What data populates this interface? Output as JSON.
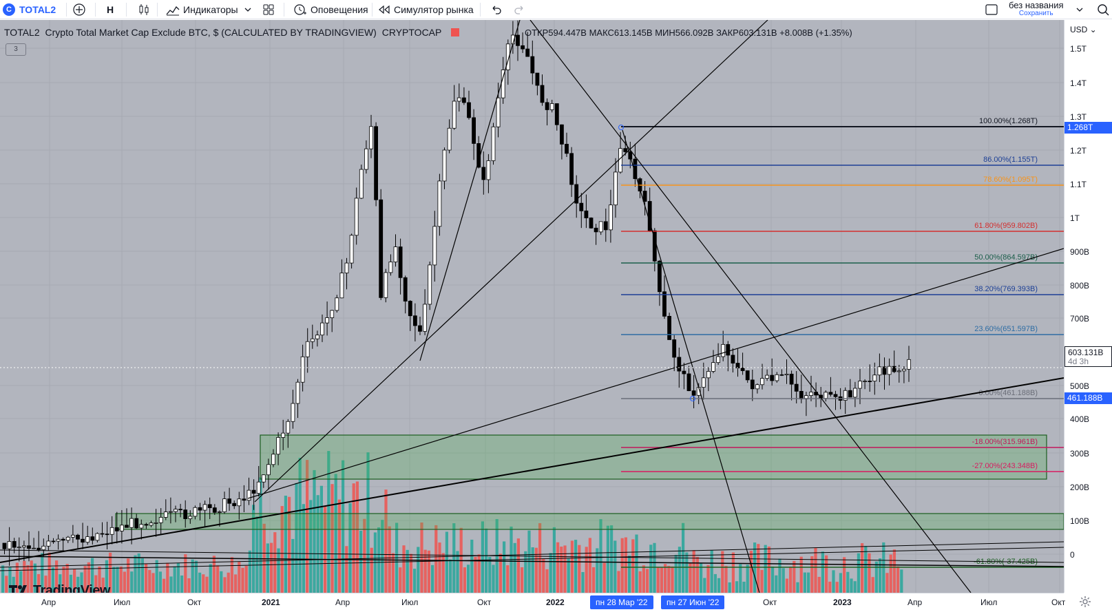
{
  "toolbar": {
    "symbol": "TOTAL2",
    "interval": "Н",
    "indicators": "Индикаторы",
    "alerts": "Оповещения",
    "replay": "Симулятор рынка",
    "layout_name": "без названия",
    "save": "Сохранить",
    "icons": [
      "plus-icon",
      "candles-icon",
      "indicators-icon",
      "layouts-icon",
      "alarm-icon",
      "replay-icon",
      "undo-icon",
      "redo-icon",
      "layout-icon",
      "search-icon"
    ]
  },
  "legend": {
    "symbol": "TOTAL2",
    "title": "Crypto Total Market Cap Exclude BTC, $ (CALCULATED BY TRADINGVIEW)",
    "exchange": "CRYPTOCAP",
    "open_label": "ОТКР",
    "open": "594.447B",
    "high_label": "МАКС",
    "high": "613.145B",
    "low_label": "МИН",
    "low": "566.092B",
    "close_label": "ЗАКР",
    "close": "603.131B",
    "change": "+8.008B (+1.35%)",
    "collapse_count": "3"
  },
  "price_axis": {
    "currency": "USD",
    "labels": [
      "1.5T",
      "1.4T",
      "1.3T",
      "1.2T",
      "1.1T",
      "1T",
      "900B",
      "800B",
      "700B",
      "500B",
      "400B",
      "300B",
      "200B",
      "100B",
      "0"
    ],
    "current_price": "603.131B",
    "countdown": "4d 3h",
    "badge_top": "1.268T",
    "badge_bottom": "461.188B"
  },
  "time_axis": {
    "labels": [
      "Апр",
      "Июл",
      "Окт",
      "2021",
      "Апр",
      "Июл",
      "Окт",
      "2022",
      "Окт",
      "2023",
      "Апр",
      "Июл",
      "Окт"
    ],
    "highlight_1": "пн 28 Мар '22",
    "highlight_2": "пн 27 Июн '22"
  },
  "fib_levels": [
    {
      "label": "100.00%(1.268T)",
      "color": "#131722"
    },
    {
      "label": "86.00%(1.155T)",
      "color": "#1c3f95"
    },
    {
      "label": "78.60%(1.095T)",
      "color": "#f7931a"
    },
    {
      "label": "61.80%(959.802B)",
      "color": "#d32f2f"
    },
    {
      "label": "50.00%(864.597B)",
      "color": "#1b5e4a"
    },
    {
      "label": "38.20%(769.393B)",
      "color": "#1c3f95"
    },
    {
      "label": "23.60%(651.597B)",
      "color": "#2e6da4"
    },
    {
      "label": "0.00%(461.188B)",
      "color": "#6b6e78"
    },
    {
      "label": "-18.00%(315.961B)",
      "color": "#c2185b"
    },
    {
      "label": "-27.00%(243.348B)",
      "color": "#d81b60"
    },
    {
      "label": "-61.80%(-37.425B)",
      "color": "#1b5e20"
    }
  ],
  "brand": "TradingView",
  "colors": {
    "up_volume": "#26a69a",
    "down_volume": "#ef5350",
    "chart_bg": "#b2b5be",
    "accent": "#2962ff"
  }
}
